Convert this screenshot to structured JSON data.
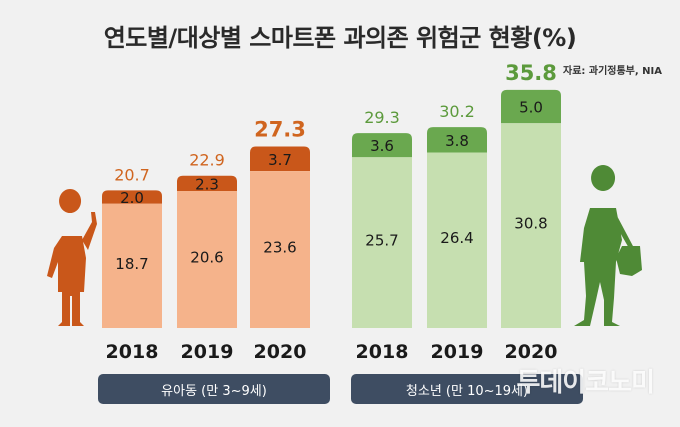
{
  "title": "연도별/대상별 스마트폰 과의존 위험군 현황(%)",
  "source": "자료: 과기정통부, NIA",
  "watermark": "투데이코노미",
  "colors": {
    "child_base": "#f5b38b",
    "child_top": "#c9571a",
    "child_total": "#d0651f",
    "teen_base": "#c6dfb0",
    "teen_top": "#6aa84f",
    "teen_total": "#5c9a3c",
    "group_label_bg": "#3e4d62"
  },
  "chart_data": {
    "type": "bar",
    "stacked": true,
    "title": "연도별/대상별 스마트폰 과의존 위험군 현황(%)",
    "groups": [
      {
        "label": "유아동 (만 3~9세)",
        "categories": [
          "2018",
          "2019",
          "2020"
        ],
        "series": [
          {
            "values": [
              18.7,
              20.6,
              23.6
            ]
          },
          {
            "values": [
              2.0,
              2.3,
              3.7
            ]
          }
        ],
        "totals": [
          20.7,
          22.9,
          27.3
        ],
        "base_labels": [
          "18.7",
          "20.6",
          "23.6"
        ],
        "top_labels": [
          "2.0",
          "2.3",
          "3.7"
        ],
        "total_labels": [
          "20.7",
          "22.9",
          "27.3"
        ]
      },
      {
        "label": "청소년 (만 10~19세)",
        "categories": [
          "2018",
          "2019",
          "2020"
        ],
        "series": [
          {
            "values": [
              25.7,
              26.4,
              30.8
            ]
          },
          {
            "values": [
              3.6,
              3.8,
              5.0
            ]
          }
        ],
        "totals": [
          29.3,
          30.2,
          35.8
        ],
        "base_labels": [
          "25.7",
          "26.4",
          "30.8"
        ],
        "top_labels": [
          "3.6",
          "3.8",
          "5.0"
        ],
        "total_labels": [
          "29.3",
          "30.2",
          "35.8"
        ]
      }
    ]
  }
}
